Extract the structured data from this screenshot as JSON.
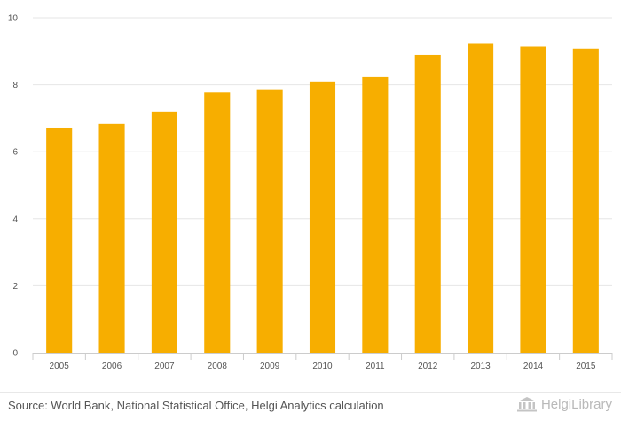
{
  "chart_data": {
    "type": "bar",
    "title": "",
    "xlabel": "",
    "ylabel": "",
    "categories": [
      "2005",
      "2006",
      "2007",
      "2008",
      "2009",
      "2010",
      "2011",
      "2012",
      "2013",
      "2014",
      "2015"
    ],
    "series": [
      {
        "name": "",
        "values": [
          6.72,
          6.83,
          7.2,
          7.77,
          7.84,
          8.1,
          8.23,
          8.89,
          9.22,
          9.14,
          9.08
        ]
      }
    ],
    "ylim": [
      0,
      10
    ],
    "yticks": [
      0,
      2,
      4,
      6,
      8,
      10
    ],
    "grid": true,
    "legend": "none",
    "bar_color": "#f7ae00"
  },
  "footer": {
    "source": "Source: World Bank, National Statistical Office, Helgi Analytics calculation",
    "brand_icon": "library-building-icon",
    "brand": "HelgiLibrary"
  }
}
